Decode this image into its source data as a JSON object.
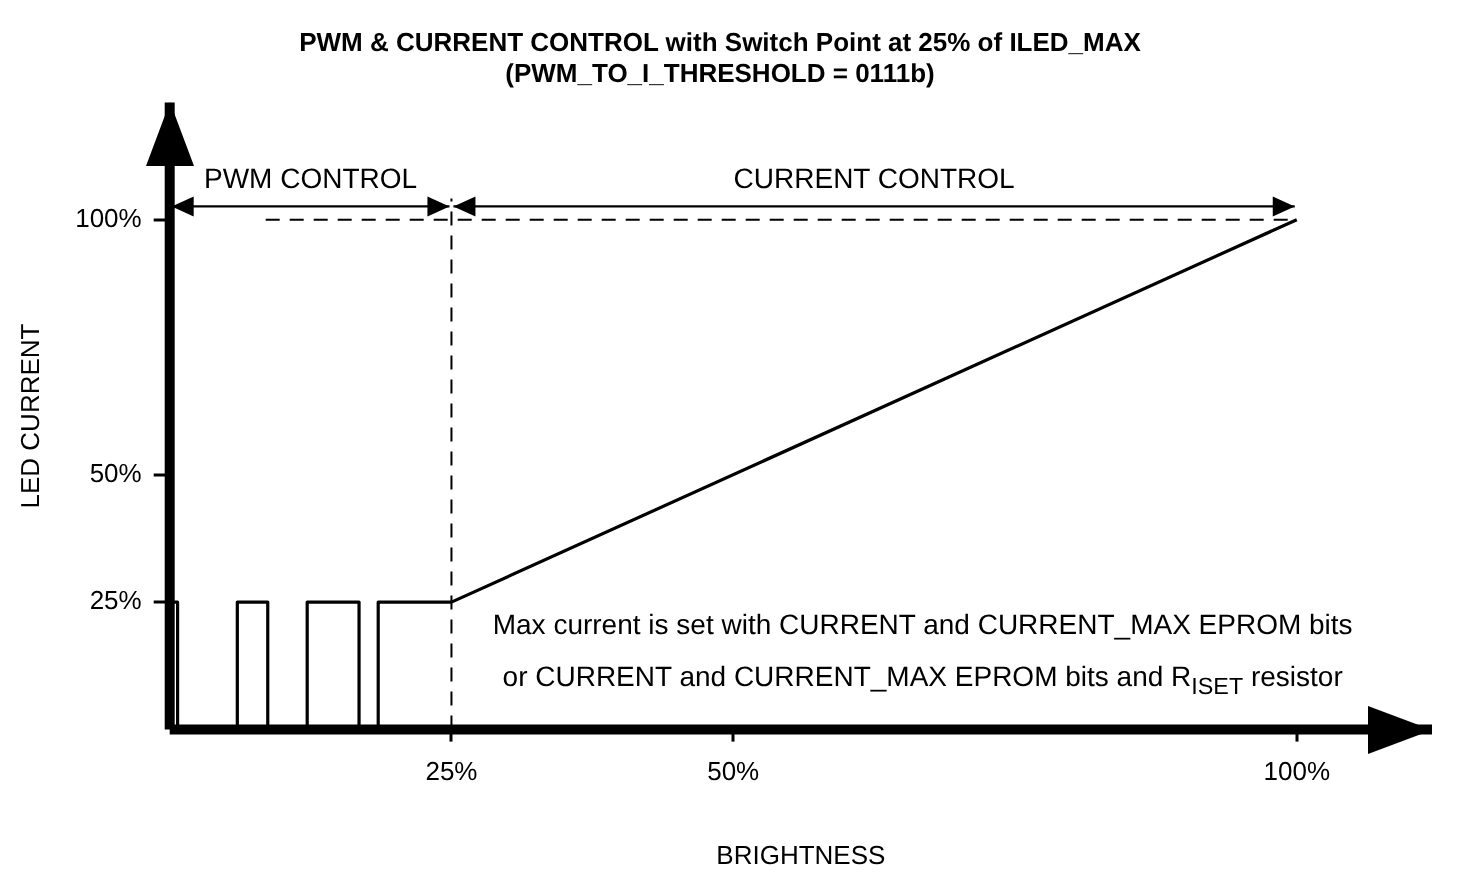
{
  "chart_data": {
    "type": "line",
    "title": "PWM & CURRENT CONTROL with Switch Point at 25% of ILED_MAX",
    "subtitle": "(PWM_TO_I_THRESHOLD = 0111b)",
    "xlabel": "BRIGHTNESS",
    "ylabel": "LED CURRENT",
    "x": [
      0,
      0.7,
      0.7,
      6,
      6,
      8.7,
      8.7,
      12.2,
      12.2,
      16.8,
      16.8,
      18.5,
      18.5,
      25,
      100
    ],
    "series": [
      {
        "color": "#000000",
        "values": [
          25,
          25,
          0,
          0,
          25,
          25,
          0,
          0,
          25,
          25,
          0,
          0,
          25,
          25,
          100
        ]
      }
    ],
    "xlim": [
      0,
      112
    ],
    "xticks": [
      {
        "value": 25,
        "label": "25%"
      },
      {
        "value": 50,
        "label": "50%"
      },
      {
        "value": 100,
        "label": "100%"
      }
    ],
    "ylim": [
      0,
      123
    ],
    "yticks": [
      {
        "value": 25,
        "label": "25%"
      },
      {
        "value": 50,
        "label": "50%"
      },
      {
        "value": 100,
        "label": "100%"
      }
    ],
    "ref_lines": [
      {
        "axis": "y",
        "value": 100,
        "color": "#000000",
        "line_style": "dashed"
      },
      {
        "axis": "x",
        "value": 25,
        "color": "#000000",
        "line_style": "dashed"
      }
    ],
    "annotations": [
      "PWM CONTROL",
      "CURRENT CONTROL",
      "Max current is set with CURRENT and CURRENT_MAX EPROM bits or CURRENT and CURRENT_MAX EPROM bits and R$_{ISET}$ resistor"
    ],
    "grid": false,
    "legend": false,
    "marker": "none",
    "line_style": "solid"
  }
}
